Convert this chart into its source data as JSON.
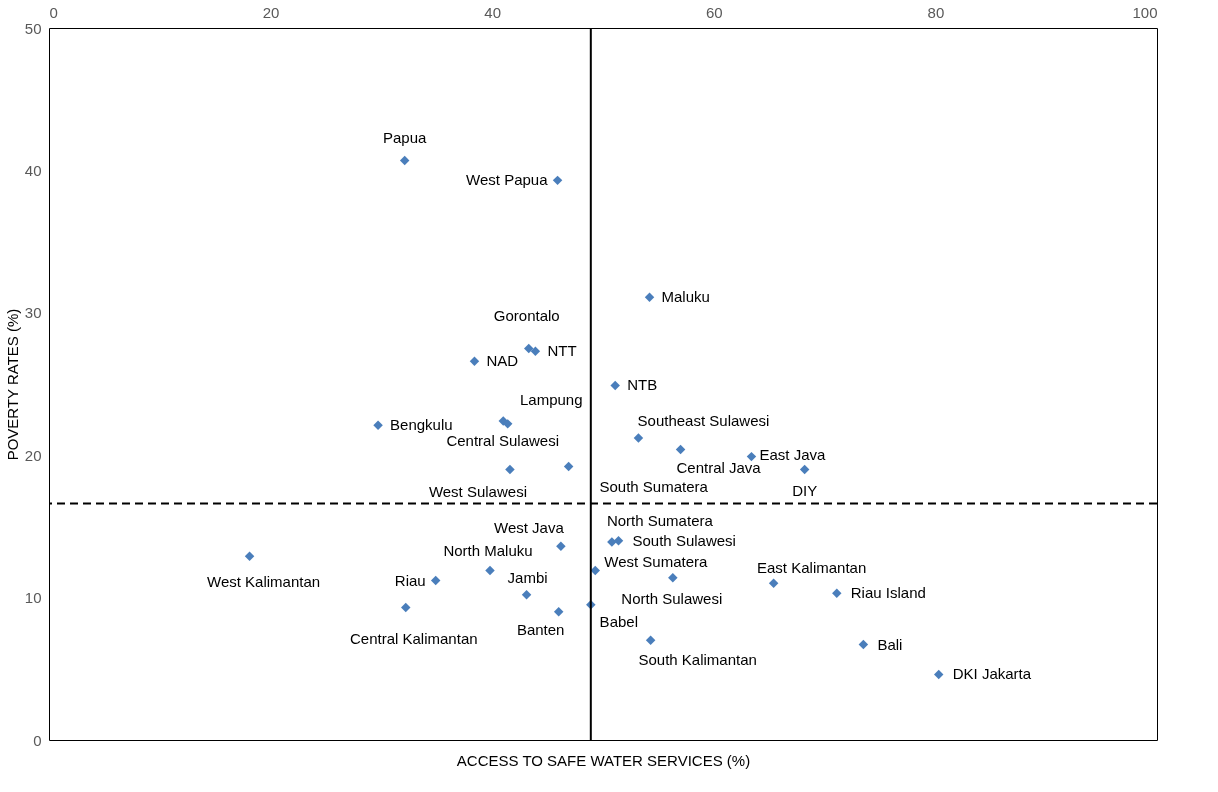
{
  "chart_data": {
    "type": "scatter",
    "xlabel": "ACCESS TO SAFE WATER SERVICES (%)",
    "ylabel": "POVERTY RATES (%)",
    "xlim": [
      0,
      100
    ],
    "xticks": [
      0,
      20,
      40,
      60,
      80,
      100
    ],
    "ylim": [
      0,
      50
    ],
    "yticks": [
      0,
      10,
      20,
      30,
      40,
      50
    ],
    "grid": false,
    "marker": "diamond",
    "ref_lines": [
      {
        "axis": "x",
        "value": 48.9,
        "line_style": "solid",
        "color": "#000000"
      },
      {
        "axis": "y",
        "value": 16.6,
        "line_style": "dashed",
        "color": "#000000"
      }
    ],
    "series": [
      {
        "name": "Papua",
        "color": "#4a7ebb",
        "x": [
          32.1
        ],
        "values": [
          40.7
        ]
      },
      {
        "name": "West Papua",
        "color": "#4a7ebb",
        "x": [
          45.9
        ],
        "values": [
          39.3
        ]
      },
      {
        "name": "Maluku",
        "color": "#4a7ebb",
        "x": [
          54.2
        ],
        "values": [
          31.1
        ]
      },
      {
        "name": "Gorontalo",
        "color": "#4a7ebb",
        "x": [
          43.3
        ],
        "values": [
          27.5
        ]
      },
      {
        "name": "NTT",
        "color": "#4a7ebb",
        "x": [
          43.9
        ],
        "values": [
          27.3
        ]
      },
      {
        "name": "NAD",
        "color": "#4a7ebb",
        "x": [
          38.4
        ],
        "values": [
          26.6
        ]
      },
      {
        "name": "NTB",
        "color": "#4a7ebb",
        "x": [
          51.1
        ],
        "values": [
          24.9
        ]
      },
      {
        "name": "Bengkulu",
        "color": "#4a7ebb",
        "x": [
          29.7
        ],
        "values": [
          22.1
        ]
      },
      {
        "name": "Lampung",
        "color": "#4a7ebb",
        "x": [
          41.0
        ],
        "values": [
          22.4
        ]
      },
      {
        "name": "Central Sulawesi",
        "color": "#4a7ebb",
        "x": [
          41.4
        ],
        "values": [
          22.2
        ]
      },
      {
        "name": "Southeast Sulawesi",
        "color": "#4a7ebb",
        "x": [
          53.2
        ],
        "values": [
          21.2
        ]
      },
      {
        "name": "Central Java",
        "color": "#4a7ebb",
        "x": [
          57.0
        ],
        "values": [
          20.4
        ]
      },
      {
        "name": "East Java",
        "color": "#4a7ebb",
        "x": [
          63.4
        ],
        "values": [
          19.9
        ]
      },
      {
        "name": "DIY",
        "color": "#4a7ebb",
        "x": [
          68.2
        ],
        "values": [
          19.0
        ]
      },
      {
        "name": "West Sulawesi",
        "color": "#4a7ebb",
        "x": [
          41.6
        ],
        "values": [
          19.0
        ]
      },
      {
        "name": "South Sumatera",
        "color": "#4a7ebb",
        "x": [
          46.9
        ],
        "values": [
          19.2
        ]
      },
      {
        "name": "West Kalimantan",
        "color": "#4a7ebb",
        "x": [
          18.1
        ],
        "values": [
          12.9
        ]
      },
      {
        "name": "Central Kalimantan",
        "color": "#4a7ebb",
        "x": [
          32.2
        ],
        "values": [
          9.3
        ]
      },
      {
        "name": "Riau",
        "color": "#4a7ebb",
        "x": [
          34.9
        ],
        "values": [
          11.2
        ]
      },
      {
        "name": "North Maluku",
        "color": "#4a7ebb",
        "x": [
          39.8
        ],
        "values": [
          11.9
        ]
      },
      {
        "name": "Jambi",
        "color": "#4a7ebb",
        "x": [
          43.1
        ],
        "values": [
          10.2
        ]
      },
      {
        "name": "Banten",
        "color": "#4a7ebb",
        "x": [
          46.0
        ],
        "values": [
          9.0
        ]
      },
      {
        "name": "West Java",
        "color": "#4a7ebb",
        "x": [
          46.2
        ],
        "values": [
          13.6
        ]
      },
      {
        "name": "North Sumatera",
        "color": "#4a7ebb",
        "x": [
          50.8
        ],
        "values": [
          13.9
        ]
      },
      {
        "name": "South Sulawesi",
        "color": "#4a7ebb",
        "x": [
          51.4
        ],
        "values": [
          14.0
        ]
      },
      {
        "name": "West Sumatera",
        "color": "#4a7ebb",
        "x": [
          49.3
        ],
        "values": [
          11.9
        ]
      },
      {
        "name": "North Sulawesi",
        "color": "#4a7ebb",
        "x": [
          56.3
        ],
        "values": [
          11.4
        ]
      },
      {
        "name": "Babel",
        "color": "#4a7ebb",
        "x": [
          48.9
        ],
        "values": [
          9.5
        ]
      },
      {
        "name": "South Kalimantan",
        "color": "#4a7ebb",
        "x": [
          54.3
        ],
        "values": [
          7.0
        ]
      },
      {
        "name": "East Kalimantan",
        "color": "#4a7ebb",
        "x": [
          65.4
        ],
        "values": [
          11.0
        ]
      },
      {
        "name": "Riau Island",
        "color": "#4a7ebb",
        "x": [
          71.1
        ],
        "values": [
          10.3
        ]
      },
      {
        "name": "Bali",
        "color": "#4a7ebb",
        "x": [
          73.5
        ],
        "values": [
          6.7
        ]
      },
      {
        "name": "DKI Jakarta",
        "color": "#4a7ebb",
        "x": [
          80.3
        ],
        "values": [
          4.6
        ]
      }
    ]
  }
}
